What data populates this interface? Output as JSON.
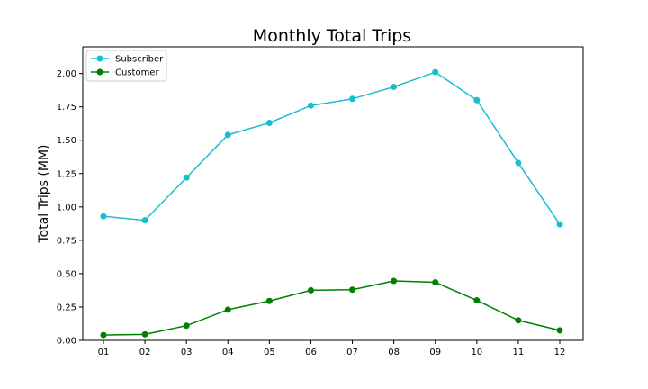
{
  "chart_data": {
    "type": "line",
    "title": "Monthly Total Trips",
    "xlabel": "",
    "ylabel": "Total Trips (MM)",
    "categories": [
      "01",
      "02",
      "03",
      "04",
      "05",
      "06",
      "07",
      "08",
      "09",
      "10",
      "11",
      "12"
    ],
    "ylim": [
      0,
      2.2
    ],
    "yticks": [
      0.0,
      0.25,
      0.5,
      0.75,
      1.0,
      1.25,
      1.5,
      1.75,
      2.0
    ],
    "ytick_labels": [
      "0.00",
      "0.25",
      "0.50",
      "0.75",
      "1.00",
      "1.25",
      "1.50",
      "1.75",
      "2.00"
    ],
    "grid": false,
    "legend": "top-left",
    "series": [
      {
        "name": "Subscriber",
        "color": "#17becf",
        "marker": "circle",
        "values": [
          0.93,
          0.9,
          1.22,
          1.54,
          1.63,
          1.76,
          1.81,
          1.9,
          2.01,
          1.8,
          1.33,
          0.87
        ]
      },
      {
        "name": "Customer",
        "color": "#008000",
        "marker": "circle",
        "values": [
          0.04,
          0.045,
          0.11,
          0.23,
          0.295,
          0.375,
          0.38,
          0.445,
          0.435,
          0.3,
          0.15,
          0.075
        ]
      }
    ]
  }
}
